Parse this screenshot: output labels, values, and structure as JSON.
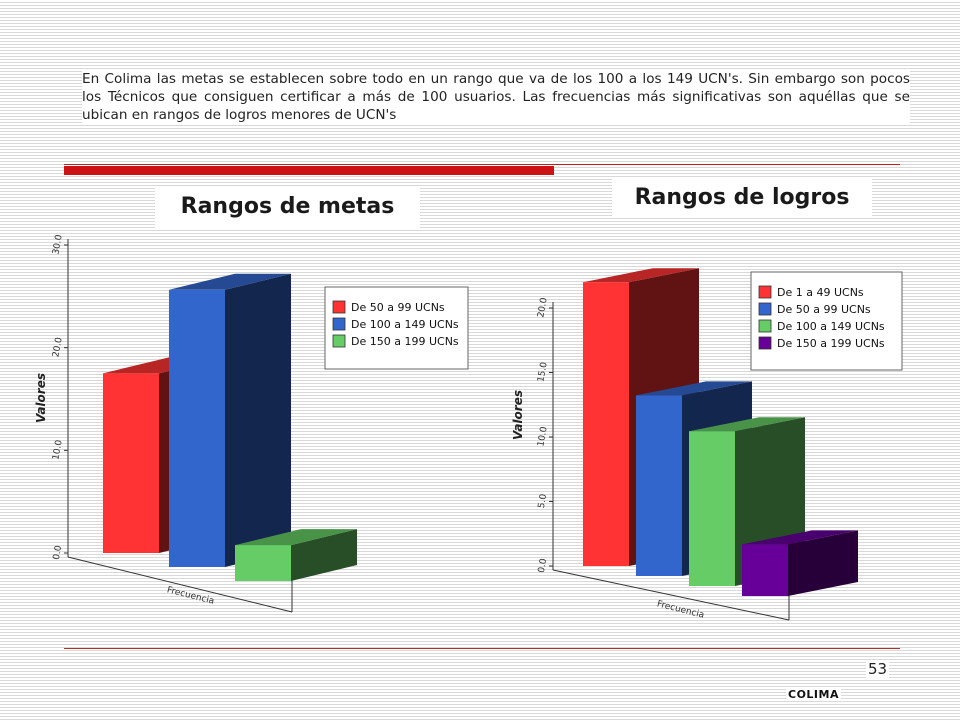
{
  "intro_text": "En Colima las metas se establecen sobre todo en un rango que va de los 100 a los 149 UCN's. Sin embargo son pocos los Técnicos que consiguen certificar a más de 100 usuarios. Las frecuencias más significativas son aquéllas que se ubican en rangos de logros menores de UCN's",
  "page_number": "53",
  "footer_label": "COLIMA",
  "chart_data": [
    {
      "type": "bar",
      "title": "Rangos de metas",
      "ylabel": "Valores",
      "xlabel": "Frecuencia",
      "ylim": [
        0,
        30
      ],
      "yticks": [
        "0.0",
        "10.0",
        "20.0",
        "30.0"
      ],
      "legend_position": "right",
      "series": [
        {
          "name": "De 50 a 99 UCNs",
          "value": 17.5,
          "color": "#ff3333"
        },
        {
          "name": "De 100 a 149 UCNs",
          "value": 27,
          "color": "#3366cc"
        },
        {
          "name": "De 150 a 199 UCNs",
          "value": 3.5,
          "color": "#66cc66"
        }
      ]
    },
    {
      "type": "bar",
      "title": "Rangos de logros",
      "ylabel": "Valores",
      "xlabel": "Frecuencia",
      "ylim": [
        0,
        20
      ],
      "yticks": [
        "0.0",
        "5.0",
        "10.0",
        "15.0",
        "20.0"
      ],
      "legend_position": "right",
      "series": [
        {
          "name": "De 1 a 49 UCNs",
          "value": 22,
          "color": "#ff3333"
        },
        {
          "name": "De 50 a 99 UCNs",
          "value": 14,
          "color": "#3366cc"
        },
        {
          "name": "De 100 a 149 UCNs",
          "value": 12,
          "color": "#66cc66"
        },
        {
          "name": "De 150 a 199 UCNs",
          "value": 4,
          "color": "#660099"
        }
      ]
    }
  ]
}
